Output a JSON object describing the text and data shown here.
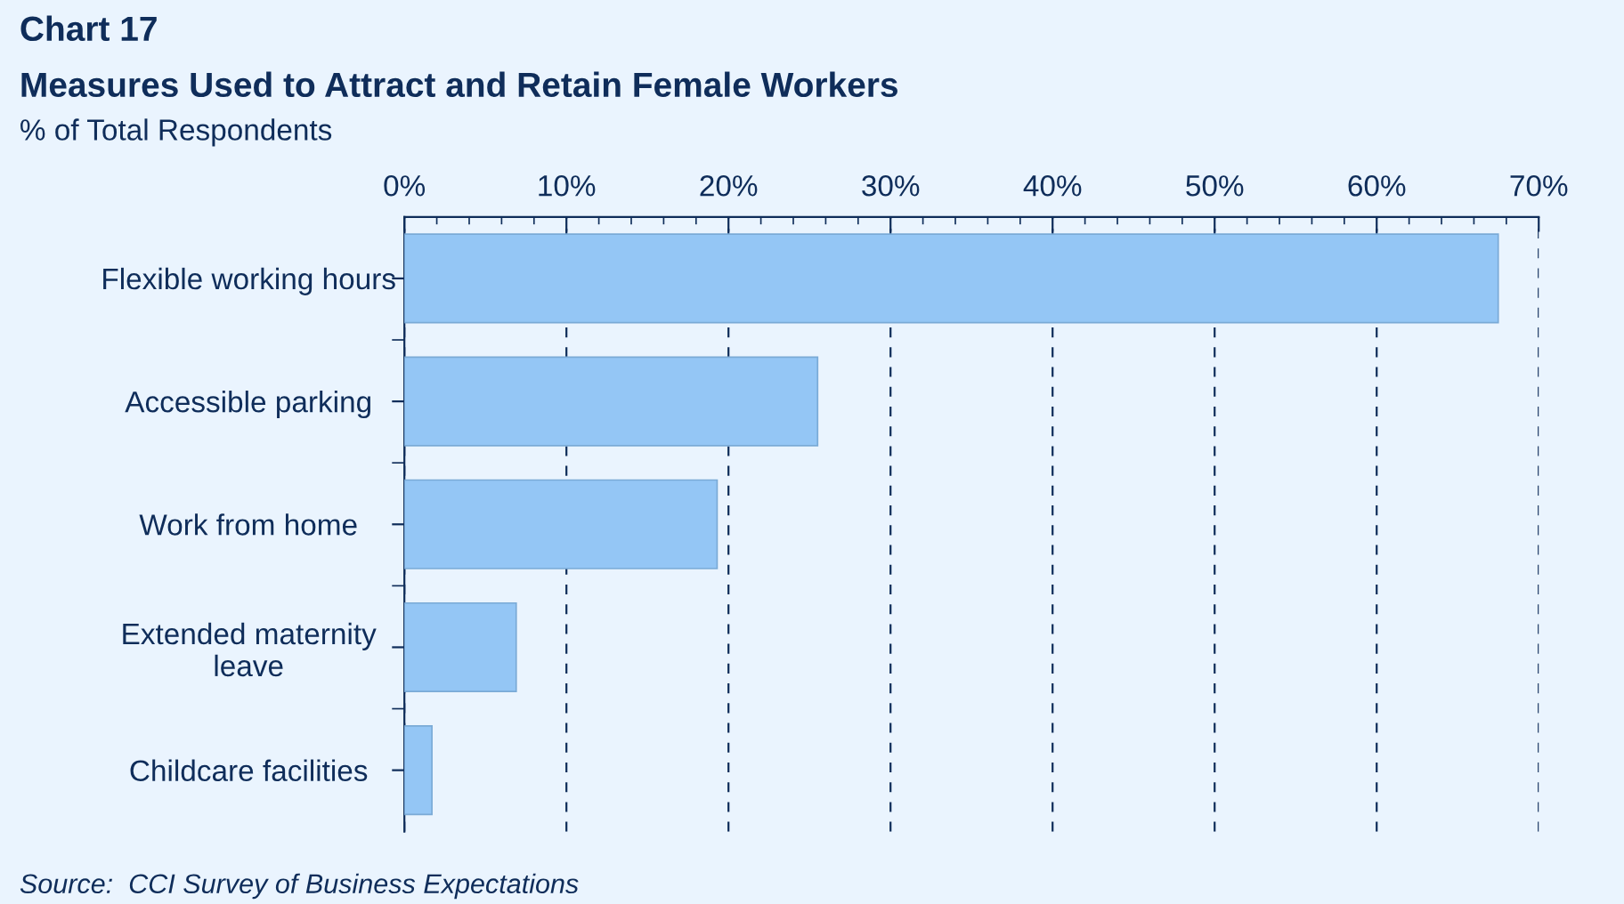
{
  "chart_data": {
    "type": "bar",
    "orientation": "horizontal",
    "title": "Chart 17",
    "subtitle": "Measures Used to Attract and Retain Female Workers",
    "xlabel": "% of Total Respondents",
    "categories": [
      "Flexible working hours",
      "Accessible parking",
      "Work from home",
      "Extended maternity\nleave",
      "Childcare facilities"
    ],
    "values": [
      67.5,
      25.5,
      19.3,
      6.9,
      1.7
    ],
    "color": "#94c6f5",
    "xlim": [
      0,
      70
    ],
    "xticks": [
      {
        "value": 0,
        "label": "0%"
      },
      {
        "value": 10,
        "label": "10%"
      },
      {
        "value": 20,
        "label": "20%"
      },
      {
        "value": 30,
        "label": "30%"
      },
      {
        "value": 40,
        "label": "40%"
      },
      {
        "value": 50,
        "label": "50%"
      },
      {
        "value": 60,
        "label": "60%"
      },
      {
        "value": 70,
        "label": "70%"
      }
    ],
    "grid": "x",
    "annotations": [
      "Source:  CCI Survey of Business Expectations"
    ]
  }
}
